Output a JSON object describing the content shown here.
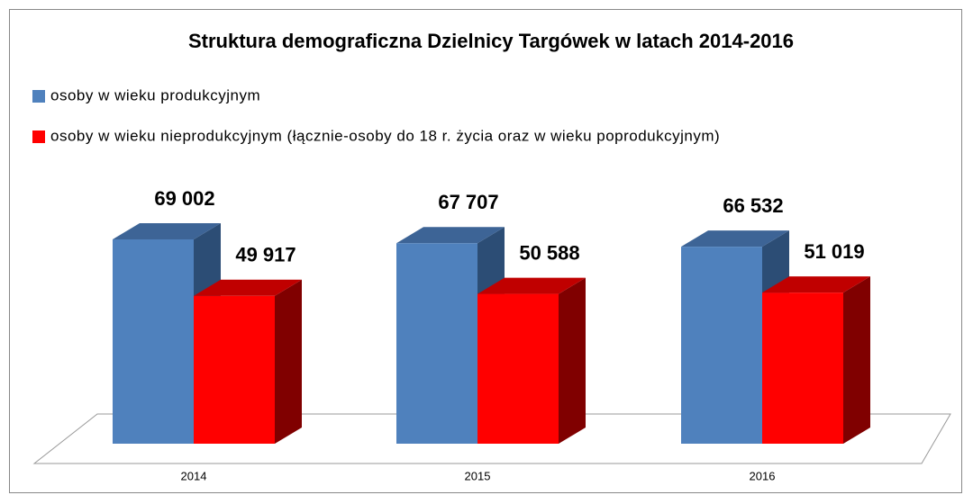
{
  "chart_data": {
    "type": "bar3d",
    "title": "Struktura demograficzna Dzielnicy Targówek w latach 2014-2016",
    "categories": [
      "2014",
      "2015",
      "2016"
    ],
    "series": [
      {
        "name": "osoby w wieku produkcyjnym",
        "color": "#4f81bd",
        "values": [
          69002,
          67707,
          66532
        ],
        "value_labels": [
          "69 002",
          "67 707",
          "66 532"
        ]
      },
      {
        "name": "osoby w wieku nieprodukcyjnym (łącznie-osoby do 18 r. życia oraz w wieku poprodukcyjnym)",
        "color": "#ff0000",
        "values": [
          49917,
          50588,
          51019
        ],
        "value_labels": [
          "49 917",
          "50 588",
          "51 019"
        ]
      }
    ],
    "legend": "top-left"
  }
}
